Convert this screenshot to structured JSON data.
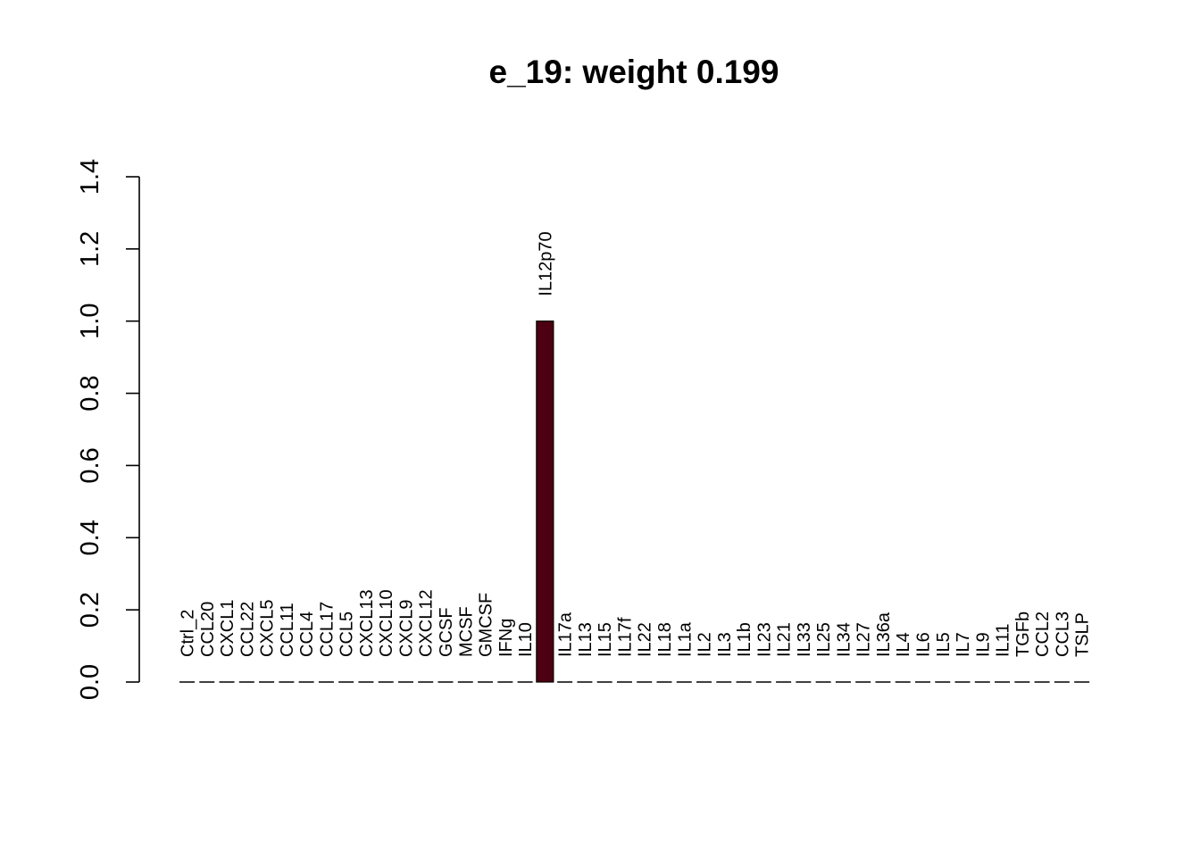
{
  "chart_data": {
    "type": "bar",
    "title": "e_19: weight 0.199",
    "xlabel": "",
    "ylabel": "",
    "ylim": [
      0,
      1.4
    ],
    "yticks": [
      "0.0",
      "0.2",
      "0.4",
      "0.6",
      "0.8",
      "1.0",
      "1.2",
      "1.4"
    ],
    "grid": false,
    "legend": "none",
    "bar_color": "#4d0011",
    "categories": [
      "Ctrl_2",
      "CCL20",
      "CXCL1",
      "CCL22",
      "CXCL5",
      "CCL11",
      "CCL4",
      "CCL17",
      "CCL5",
      "CXCL13",
      "CXCL10",
      "CXCL9",
      "CXCL12",
      "GCSF",
      "MCSF",
      "GMCSF",
      "IFNg",
      "IL10",
      "IL12p70",
      "IL17a",
      "IL13",
      "IL15",
      "IL17f",
      "IL22",
      "IL18",
      "IL1a",
      "IL2",
      "IL3",
      "IL1b",
      "IL23",
      "IL21",
      "IL33",
      "IL25",
      "IL34",
      "IL27",
      "IL36a",
      "IL4",
      "IL6",
      "IL5",
      "IL7",
      "IL9",
      "IL11",
      "TGFb",
      "CCL2",
      "CCL3",
      "TSLP"
    ],
    "values": [
      0,
      0,
      0,
      0,
      0,
      0,
      0,
      0,
      0,
      0,
      0,
      0,
      0,
      0,
      0,
      0,
      0,
      0,
      1.0,
      0,
      0,
      0,
      0,
      0,
      0,
      0,
      0,
      0,
      0,
      0,
      0,
      0,
      0,
      0,
      0,
      0,
      0,
      0,
      0,
      0,
      0,
      0,
      0,
      0,
      0,
      0
    ]
  }
}
